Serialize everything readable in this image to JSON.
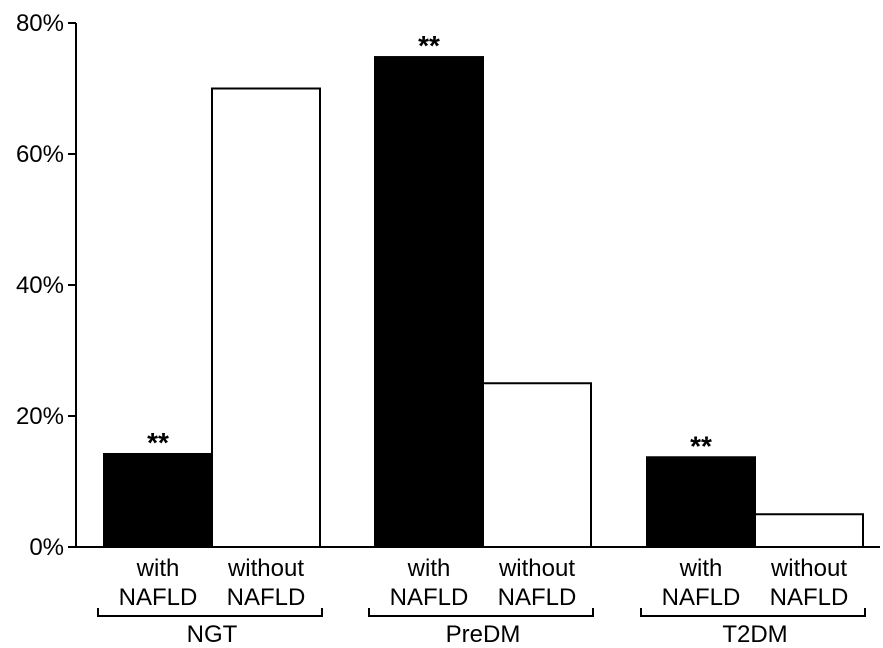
{
  "chart_data": {
    "type": "bar",
    "ylim": [
      0,
      80
    ],
    "yticks": [
      0,
      20,
      40,
      60,
      80
    ],
    "ytick_labels": [
      "0%",
      "20%",
      "40%",
      "60%",
      "80%"
    ],
    "grid": false,
    "colors": {
      "with": "#000000",
      "without": "#ffffff",
      "edge": "#000000"
    },
    "groups": [
      {
        "name": "NGT",
        "bars": [
          {
            "line1": "with",
            "line2": "NAFLD",
            "value": 14.2,
            "fill": "#000000",
            "annotation": "**"
          },
          {
            "line1": "without",
            "line2": "NAFLD",
            "value": 70.0,
            "fill": "#ffffff",
            "annotation": ""
          }
        ]
      },
      {
        "name": "PreDM",
        "bars": [
          {
            "line1": "with",
            "line2": "NAFLD",
            "value": 74.8,
            "fill": "#000000",
            "annotation": "**"
          },
          {
            "line1": "without",
            "line2": "NAFLD",
            "value": 25.0,
            "fill": "#ffffff",
            "annotation": ""
          }
        ]
      },
      {
        "name": "T2DM",
        "bars": [
          {
            "line1": "with",
            "line2": "NAFLD",
            "value": 13.7,
            "fill": "#000000",
            "annotation": "**"
          },
          {
            "line1": "without",
            "line2": "NAFLD",
            "value": 5.0,
            "fill": "#ffffff",
            "annotation": ""
          }
        ]
      }
    ]
  }
}
